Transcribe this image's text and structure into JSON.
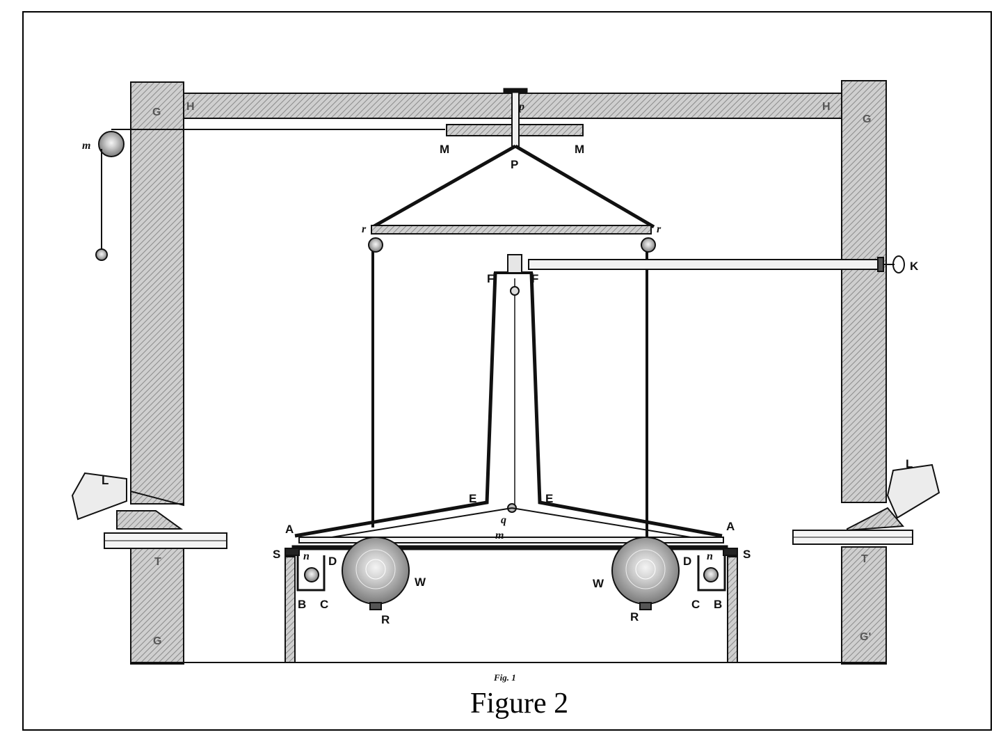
{
  "figure": {
    "small_caption": "Fig. 1",
    "caption": "Figure 2"
  },
  "labels": {
    "G_tl": "G",
    "H_l": "H",
    "H_r": "H",
    "G_tr": "G",
    "p_top": "p",
    "M_l": "M",
    "M_r": "M",
    "m_pulley": "m",
    "P": "P",
    "r_l": "r",
    "r_r": "r",
    "F_l": "F",
    "F_r": "F",
    "K": "K",
    "E_l": "E",
    "E_r": "E",
    "A_l": "A",
    "A_r": "A",
    "q": "q",
    "m_rod": "m",
    "S_l": "S",
    "S_r": "S",
    "D_l": "D",
    "D_r": "D",
    "n_l": "n",
    "n_r": "n",
    "W_l": "W",
    "W_r": "W",
    "B_l": "B",
    "C_l": "C",
    "C_r": "C",
    "B_r": "B",
    "R_l": "R",
    "R_r": "R",
    "L_l": "L",
    "L_r": "L",
    "T_l": "T",
    "T_r": "T",
    "G_bl": "G",
    "G_br": "G'"
  },
  "colors": {
    "ink": "#111111",
    "hatch_bg": "#c8c8c8",
    "hatch_line": "#8a8a8a",
    "sphere": "#bdbdbd"
  }
}
